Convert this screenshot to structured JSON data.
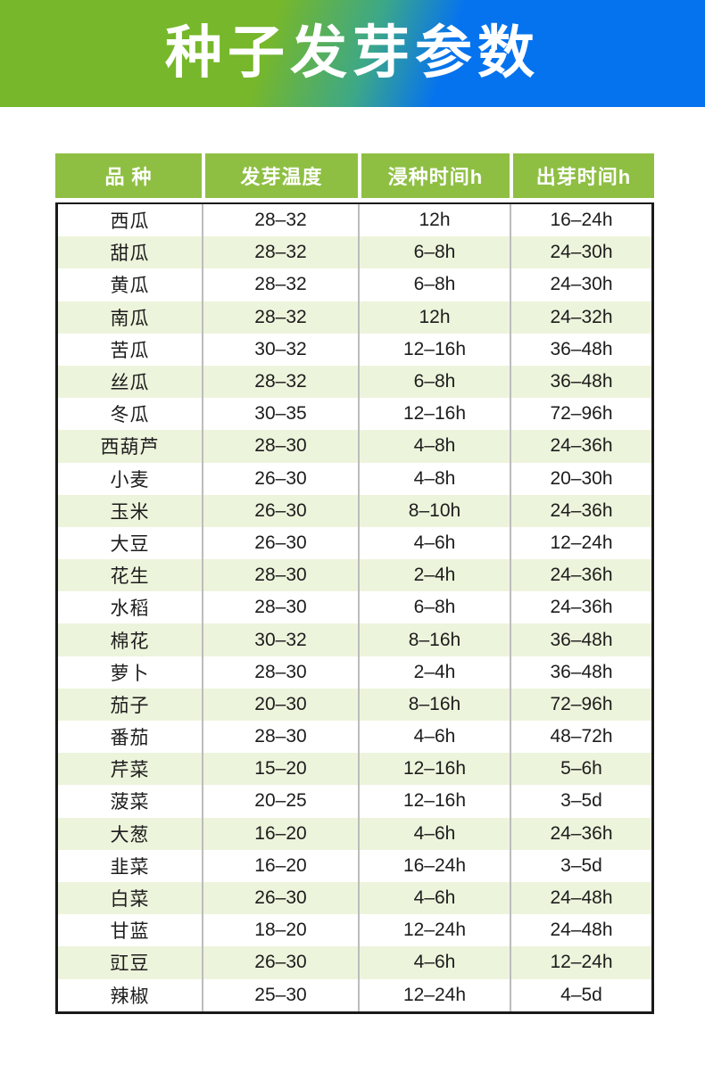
{
  "banner": {
    "title": "种子发芽参数"
  },
  "colors": {
    "banner_green": "#76b72b",
    "banner_blue": "#0673ee",
    "header_green": "#8ebf43",
    "stripe_green": "#edf4dc",
    "border_dark": "#1a1a1a",
    "grid_gray": "#bcbcbc",
    "text_dark": "#1d1d1d"
  },
  "table": {
    "headers": [
      "品 种",
      "发芽温度",
      "浸种时间h",
      "出芽时间h"
    ],
    "rows": [
      [
        "西瓜",
        "28–32",
        "12h",
        "16–24h"
      ],
      [
        "甜瓜",
        "28–32",
        "6–8h",
        "24–30h"
      ],
      [
        "黄瓜",
        "28–32",
        "6–8h",
        "24–30h"
      ],
      [
        "南瓜",
        "28–32",
        "12h",
        "24–32h"
      ],
      [
        "苦瓜",
        "30–32",
        "12–16h",
        "36–48h"
      ],
      [
        "丝瓜",
        "28–32",
        "6–8h",
        "36–48h"
      ],
      [
        "冬瓜",
        "30–35",
        "12–16h",
        "72–96h"
      ],
      [
        "西葫芦",
        "28–30",
        "4–8h",
        "24–36h"
      ],
      [
        "小麦",
        "26–30",
        "4–8h",
        "20–30h"
      ],
      [
        "玉米",
        "26–30",
        "8–10h",
        "24–36h"
      ],
      [
        "大豆",
        "26–30",
        "4–6h",
        "12–24h"
      ],
      [
        "花生",
        "28–30",
        "2–4h",
        "24–36h"
      ],
      [
        "水稻",
        "28–30",
        "6–8h",
        "24–36h"
      ],
      [
        "棉花",
        "30–32",
        "8–16h",
        "36–48h"
      ],
      [
        "萝卜",
        "28–30",
        "2–4h",
        "36–48h"
      ],
      [
        "茄子",
        "20–30",
        "8–16h",
        "72–96h"
      ],
      [
        "番茄",
        "28–30",
        "4–6h",
        "48–72h"
      ],
      [
        "芹菜",
        "15–20",
        "12–16h",
        "5–6h"
      ],
      [
        "菠菜",
        "20–25",
        "12–16h",
        "3–5d"
      ],
      [
        "大葱",
        "16–20",
        "4–6h",
        "24–36h"
      ],
      [
        "韭菜",
        "16–20",
        "16–24h",
        "3–5d"
      ],
      [
        "白菜",
        "26–30",
        "4–6h",
        "24–48h"
      ],
      [
        "甘蓝",
        "18–20",
        "12–24h",
        "24–48h"
      ],
      [
        "豇豆",
        "26–30",
        "4–6h",
        "12–24h"
      ],
      [
        "辣椒",
        "25–30",
        "12–24h",
        "4–5d"
      ]
    ]
  },
  "chart_data": {
    "type": "table",
    "title": "种子发芽参数",
    "columns": [
      "品 种",
      "发芽温度",
      "浸种时间h",
      "出芽时间h"
    ],
    "rows": [
      [
        "西瓜",
        "28–32",
        "12h",
        "16–24h"
      ],
      [
        "甜瓜",
        "28–32",
        "6–8h",
        "24–30h"
      ],
      [
        "黄瓜",
        "28–32",
        "6–8h",
        "24–30h"
      ],
      [
        "南瓜",
        "28–32",
        "12h",
        "24–32h"
      ],
      [
        "苦瓜",
        "30–32",
        "12–16h",
        "36–48h"
      ],
      [
        "丝瓜",
        "28–32",
        "6–8h",
        "36–48h"
      ],
      [
        "冬瓜",
        "30–35",
        "12–16h",
        "72–96h"
      ],
      [
        "西葫芦",
        "28–30",
        "4–8h",
        "24–36h"
      ],
      [
        "小麦",
        "26–30",
        "4–8h",
        "20–30h"
      ],
      [
        "玉米",
        "26–30",
        "8–10h",
        "24–36h"
      ],
      [
        "大豆",
        "26–30",
        "4–6h",
        "12–24h"
      ],
      [
        "花生",
        "28–30",
        "2–4h",
        "24–36h"
      ],
      [
        "水稻",
        "28–30",
        "6–8h",
        "24–36h"
      ],
      [
        "棉花",
        "30–32",
        "8–16h",
        "36–48h"
      ],
      [
        "萝卜",
        "28–30",
        "2–4h",
        "36–48h"
      ],
      [
        "茄子",
        "20–30",
        "8–16h",
        "72–96h"
      ],
      [
        "番茄",
        "28–30",
        "4–6h",
        "48–72h"
      ],
      [
        "芹菜",
        "15–20",
        "12–16h",
        "5–6h"
      ],
      [
        "菠菜",
        "20–25",
        "12–16h",
        "3–5d"
      ],
      [
        "大葱",
        "16–20",
        "4–6h",
        "24–36h"
      ],
      [
        "韭菜",
        "16–20",
        "16–24h",
        "3–5d"
      ],
      [
        "白菜",
        "26–30",
        "4–6h",
        "24–48h"
      ],
      [
        "甘蓝",
        "18–20",
        "12–24h",
        "24–48h"
      ],
      [
        "豇豆",
        "26–30",
        "4–6h",
        "12–24h"
      ],
      [
        "辣椒",
        "25–30",
        "12–24h",
        "4–5d"
      ]
    ],
    "layout_hints": {
      "striped_rows": true,
      "header_background": "#8ebf43",
      "stripe_background": "#edf4dc"
    }
  }
}
